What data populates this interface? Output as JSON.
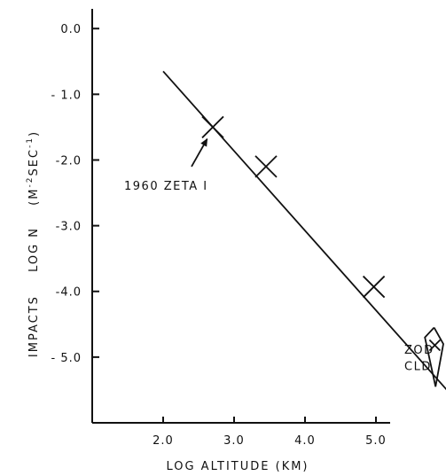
{
  "chart_data": {
    "type": "scatter",
    "xlabel": "LOG ALTITUDE (KM)",
    "ylabel_left": "IMPACTS",
    "ylabel_right": "LOG N",
    "ylabel_units_base": "(M",
    "ylabel_units_exp1": "-2",
    "ylabel_units_mid": "SEC",
    "ylabel_units_exp2": "-1",
    "ylabel_units_end": ")",
    "xlim": [
      1.0,
      5.9
    ],
    "ylim": [
      -6.0,
      0.3
    ],
    "x_ticks": [
      2.0,
      3.0,
      4.0,
      5.0
    ],
    "x_tick_labels": [
      "2.0",
      "3.0",
      "4.0",
      "5.0"
    ],
    "y_ticks": [
      0.0,
      -1.0,
      -2.0,
      -3.0,
      -4.0,
      -5.0
    ],
    "y_tick_labels": [
      "0.0",
      "- 1.0",
      "-2.0",
      "-3.0",
      "-4.0",
      "- 5.0"
    ],
    "points": [
      {
        "x": 2.7,
        "y": -1.5
      },
      {
        "x": 3.45,
        "y": -2.1
      },
      {
        "x": 4.97,
        "y": -3.93
      },
      {
        "x": 5.83,
        "y": -4.82
      }
    ],
    "fit_line": {
      "x": [
        2.0,
        6.0
      ],
      "y": [
        -0.65,
        -5.5
      ]
    },
    "zod_region": {
      "x": [
        5.82,
        5.95,
        5.84,
        5.69,
        5.82
      ],
      "y": [
        -4.55,
        -4.8,
        -5.45,
        -4.7,
        -4.55
      ]
    },
    "annotations": [
      {
        "text": "1960 ZETA I",
        "x": 1.45,
        "y": -2.45,
        "arrow_to": {
          "x": 2.62,
          "y": -1.68
        },
        "arrow_from": {
          "x": 2.4,
          "y": -2.1
        }
      },
      {
        "text": "ZOD",
        "x": 5.4,
        "y": -4.95
      },
      {
        "text": "CLD",
        "x": 5.4,
        "y": -5.2
      }
    ]
  }
}
